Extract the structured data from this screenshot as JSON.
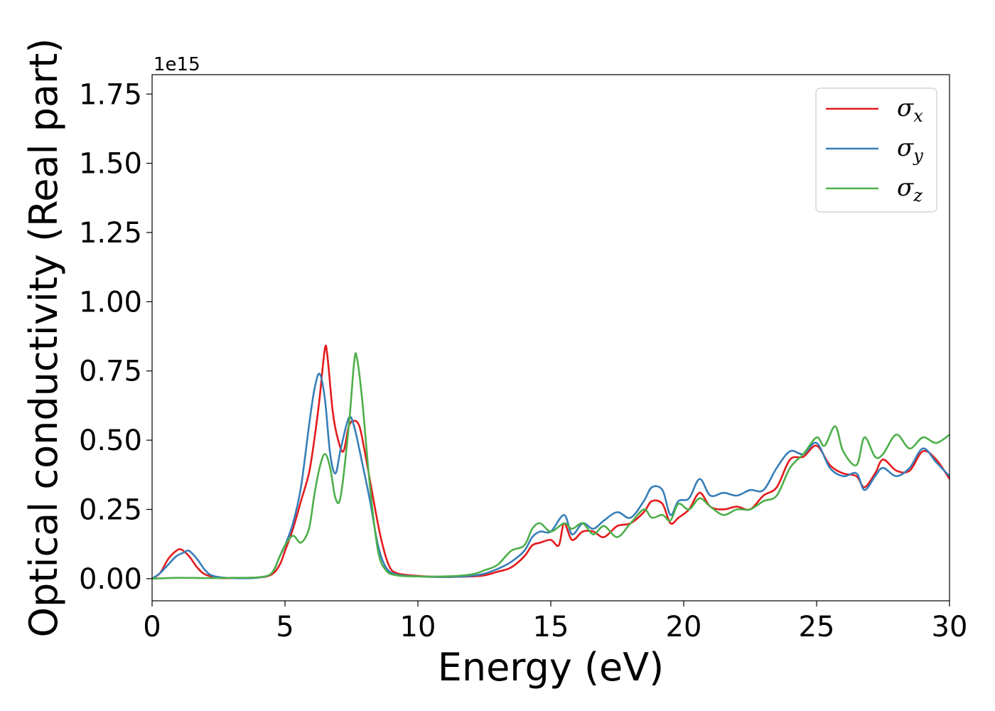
{
  "chart_data": {
    "type": "line",
    "title": "",
    "xlabel": "Energy (eV)",
    "ylabel": "Optical conductivity (Real part)",
    "y_offset_label": "1e15",
    "xlim": [
      0,
      30
    ],
    "ylim": [
      -0.08,
      1.82
    ],
    "x_ticks": [
      0,
      5,
      10,
      15,
      20,
      25,
      30
    ],
    "y_ticks": [
      0.0,
      0.25,
      0.5,
      0.75,
      1.0,
      1.25,
      1.5,
      1.75
    ],
    "x_tick_labels": [
      "0",
      "5",
      "10",
      "15",
      "20",
      "25",
      "30"
    ],
    "y_tick_labels": [
      "0.00",
      "0.25",
      "0.50",
      "0.75",
      "1.00",
      "1.25",
      "1.50",
      "1.75"
    ],
    "grid": false,
    "legend_position": "top-right",
    "series": [
      {
        "name": "σx",
        "legend_symbol": "σ",
        "legend_sub": "x",
        "color": "#e41a1c",
        "points": [
          [
            0,
            0.0
          ],
          [
            0.3,
            0.02
          ],
          [
            0.6,
            0.07
          ],
          [
            0.9,
            0.1
          ],
          [
            1.1,
            0.105
          ],
          [
            1.4,
            0.08
          ],
          [
            1.7,
            0.04
          ],
          [
            2.0,
            0.015
          ],
          [
            2.5,
            0.003
          ],
          [
            3.0,
            0.002
          ],
          [
            4.0,
            0.004
          ],
          [
            4.5,
            0.015
          ],
          [
            4.8,
            0.05
          ],
          [
            5.0,
            0.1
          ],
          [
            5.3,
            0.18
          ],
          [
            5.6,
            0.28
          ],
          [
            5.9,
            0.38
          ],
          [
            6.1,
            0.5
          ],
          [
            6.3,
            0.65
          ],
          [
            6.5,
            0.83
          ],
          [
            6.6,
            0.8
          ],
          [
            6.8,
            0.6
          ],
          [
            7.0,
            0.5
          ],
          [
            7.2,
            0.46
          ],
          [
            7.4,
            0.55
          ],
          [
            7.6,
            0.57
          ],
          [
            7.8,
            0.55
          ],
          [
            8.0,
            0.46
          ],
          [
            8.3,
            0.3
          ],
          [
            8.6,
            0.15
          ],
          [
            8.9,
            0.05
          ],
          [
            9.2,
            0.02
          ],
          [
            10.0,
            0.01
          ],
          [
            11.0,
            0.006
          ],
          [
            12.0,
            0.008
          ],
          [
            12.5,
            0.012
          ],
          [
            13.0,
            0.025
          ],
          [
            13.5,
            0.04
          ],
          [
            14.0,
            0.08
          ],
          [
            14.3,
            0.12
          ],
          [
            14.6,
            0.13
          ],
          [
            15.0,
            0.14
          ],
          [
            15.3,
            0.12
          ],
          [
            15.5,
            0.2
          ],
          [
            15.8,
            0.14
          ],
          [
            16.2,
            0.17
          ],
          [
            16.6,
            0.17
          ],
          [
            17.0,
            0.15
          ],
          [
            17.5,
            0.19
          ],
          [
            18.0,
            0.2
          ],
          [
            18.5,
            0.24
          ],
          [
            18.8,
            0.28
          ],
          [
            19.2,
            0.27
          ],
          [
            19.5,
            0.2
          ],
          [
            19.8,
            0.22
          ],
          [
            20.2,
            0.25
          ],
          [
            20.6,
            0.31
          ],
          [
            21.0,
            0.26
          ],
          [
            21.5,
            0.25
          ],
          [
            22.0,
            0.26
          ],
          [
            22.5,
            0.25
          ],
          [
            23.0,
            0.3
          ],
          [
            23.5,
            0.33
          ],
          [
            24.0,
            0.43
          ],
          [
            24.5,
            0.44
          ],
          [
            25.0,
            0.48
          ],
          [
            25.5,
            0.41
          ],
          [
            26.0,
            0.38
          ],
          [
            26.5,
            0.37
          ],
          [
            26.8,
            0.33
          ],
          [
            27.2,
            0.38
          ],
          [
            27.5,
            0.43
          ],
          [
            28.0,
            0.39
          ],
          [
            28.5,
            0.39
          ],
          [
            29.0,
            0.46
          ],
          [
            29.5,
            0.43
          ],
          [
            30.0,
            0.36
          ]
        ]
      },
      {
        "name": "σy",
        "legend_symbol": "σ",
        "legend_sub": "y",
        "color": "#377eb8",
        "points": [
          [
            0,
            0.0
          ],
          [
            0.3,
            0.02
          ],
          [
            0.6,
            0.05
          ],
          [
            0.9,
            0.08
          ],
          [
            1.2,
            0.095
          ],
          [
            1.4,
            0.1
          ],
          [
            1.7,
            0.07
          ],
          [
            2.0,
            0.03
          ],
          [
            2.3,
            0.01
          ],
          [
            3.0,
            0.002
          ],
          [
            4.0,
            0.004
          ],
          [
            4.5,
            0.02
          ],
          [
            4.8,
            0.08
          ],
          [
            5.0,
            0.12
          ],
          [
            5.3,
            0.2
          ],
          [
            5.6,
            0.33
          ],
          [
            5.9,
            0.55
          ],
          [
            6.1,
            0.68
          ],
          [
            6.3,
            0.74
          ],
          [
            6.5,
            0.65
          ],
          [
            6.7,
            0.45
          ],
          [
            6.9,
            0.38
          ],
          [
            7.1,
            0.47
          ],
          [
            7.4,
            0.58
          ],
          [
            7.6,
            0.55
          ],
          [
            7.9,
            0.42
          ],
          [
            8.2,
            0.28
          ],
          [
            8.5,
            0.12
          ],
          [
            8.8,
            0.04
          ],
          [
            9.2,
            0.015
          ],
          [
            10.0,
            0.008
          ],
          [
            11.0,
            0.006
          ],
          [
            12.0,
            0.01
          ],
          [
            12.5,
            0.018
          ],
          [
            13.0,
            0.035
          ],
          [
            13.5,
            0.06
          ],
          [
            14.0,
            0.1
          ],
          [
            14.3,
            0.15
          ],
          [
            14.6,
            0.17
          ],
          [
            15.0,
            0.17
          ],
          [
            15.5,
            0.23
          ],
          [
            15.8,
            0.16
          ],
          [
            16.2,
            0.2
          ],
          [
            16.6,
            0.18
          ],
          [
            17.0,
            0.21
          ],
          [
            17.5,
            0.24
          ],
          [
            18.0,
            0.22
          ],
          [
            18.5,
            0.28
          ],
          [
            18.8,
            0.33
          ],
          [
            19.2,
            0.32
          ],
          [
            19.5,
            0.23
          ],
          [
            19.8,
            0.28
          ],
          [
            20.2,
            0.29
          ],
          [
            20.6,
            0.36
          ],
          [
            21.0,
            0.3
          ],
          [
            21.5,
            0.31
          ],
          [
            22.0,
            0.3
          ],
          [
            22.5,
            0.32
          ],
          [
            23.0,
            0.32
          ],
          [
            23.5,
            0.4
          ],
          [
            24.0,
            0.46
          ],
          [
            24.5,
            0.45
          ],
          [
            25.0,
            0.49
          ],
          [
            25.5,
            0.4
          ],
          [
            26.0,
            0.37
          ],
          [
            26.5,
            0.38
          ],
          [
            26.8,
            0.32
          ],
          [
            27.2,
            0.37
          ],
          [
            27.5,
            0.4
          ],
          [
            28.0,
            0.37
          ],
          [
            28.5,
            0.4
          ],
          [
            29.0,
            0.47
          ],
          [
            29.5,
            0.42
          ],
          [
            30.0,
            0.37
          ]
        ]
      },
      {
        "name": "σz",
        "legend_symbol": "σ",
        "legend_sub": "z",
        "color": "#4daf4a",
        "points": [
          [
            0,
            0.0
          ],
          [
            1.0,
            0.003
          ],
          [
            2.0,
            0.002
          ],
          [
            3.0,
            0.003
          ],
          [
            4.0,
            0.005
          ],
          [
            4.5,
            0.02
          ],
          [
            4.8,
            0.08
          ],
          [
            5.0,
            0.12
          ],
          [
            5.3,
            0.155
          ],
          [
            5.6,
            0.13
          ],
          [
            5.9,
            0.18
          ],
          [
            6.1,
            0.3
          ],
          [
            6.3,
            0.4
          ],
          [
            6.5,
            0.45
          ],
          [
            6.7,
            0.4
          ],
          [
            6.9,
            0.29
          ],
          [
            7.1,
            0.3
          ],
          [
            7.4,
            0.55
          ],
          [
            7.6,
            0.78
          ],
          [
            7.7,
            0.8
          ],
          [
            7.9,
            0.65
          ],
          [
            8.2,
            0.33
          ],
          [
            8.5,
            0.1
          ],
          [
            8.8,
            0.03
          ],
          [
            9.2,
            0.012
          ],
          [
            10.0,
            0.008
          ],
          [
            11.0,
            0.008
          ],
          [
            12.0,
            0.015
          ],
          [
            12.5,
            0.03
          ],
          [
            13.0,
            0.05
          ],
          [
            13.5,
            0.1
          ],
          [
            14.0,
            0.12
          ],
          [
            14.3,
            0.18
          ],
          [
            14.6,
            0.2
          ],
          [
            15.0,
            0.17
          ],
          [
            15.5,
            0.2
          ],
          [
            15.8,
            0.18
          ],
          [
            16.2,
            0.2
          ],
          [
            16.6,
            0.16
          ],
          [
            17.0,
            0.19
          ],
          [
            17.5,
            0.15
          ],
          [
            18.0,
            0.2
          ],
          [
            18.5,
            0.25
          ],
          [
            18.8,
            0.22
          ],
          [
            19.2,
            0.23
          ],
          [
            19.5,
            0.21
          ],
          [
            19.8,
            0.27
          ],
          [
            20.2,
            0.25
          ],
          [
            20.6,
            0.29
          ],
          [
            21.0,
            0.26
          ],
          [
            21.5,
            0.23
          ],
          [
            22.0,
            0.25
          ],
          [
            22.5,
            0.25
          ],
          [
            23.0,
            0.28
          ],
          [
            23.5,
            0.3
          ],
          [
            24.0,
            0.4
          ],
          [
            24.5,
            0.45
          ],
          [
            25.0,
            0.51
          ],
          [
            25.3,
            0.48
          ],
          [
            25.7,
            0.55
          ],
          [
            26.0,
            0.46
          ],
          [
            26.5,
            0.41
          ],
          [
            26.8,
            0.51
          ],
          [
            27.2,
            0.44
          ],
          [
            27.5,
            0.45
          ],
          [
            28.0,
            0.52
          ],
          [
            28.5,
            0.47
          ],
          [
            29.0,
            0.51
          ],
          [
            29.5,
            0.49
          ],
          [
            30.0,
            0.52
          ]
        ]
      }
    ]
  }
}
